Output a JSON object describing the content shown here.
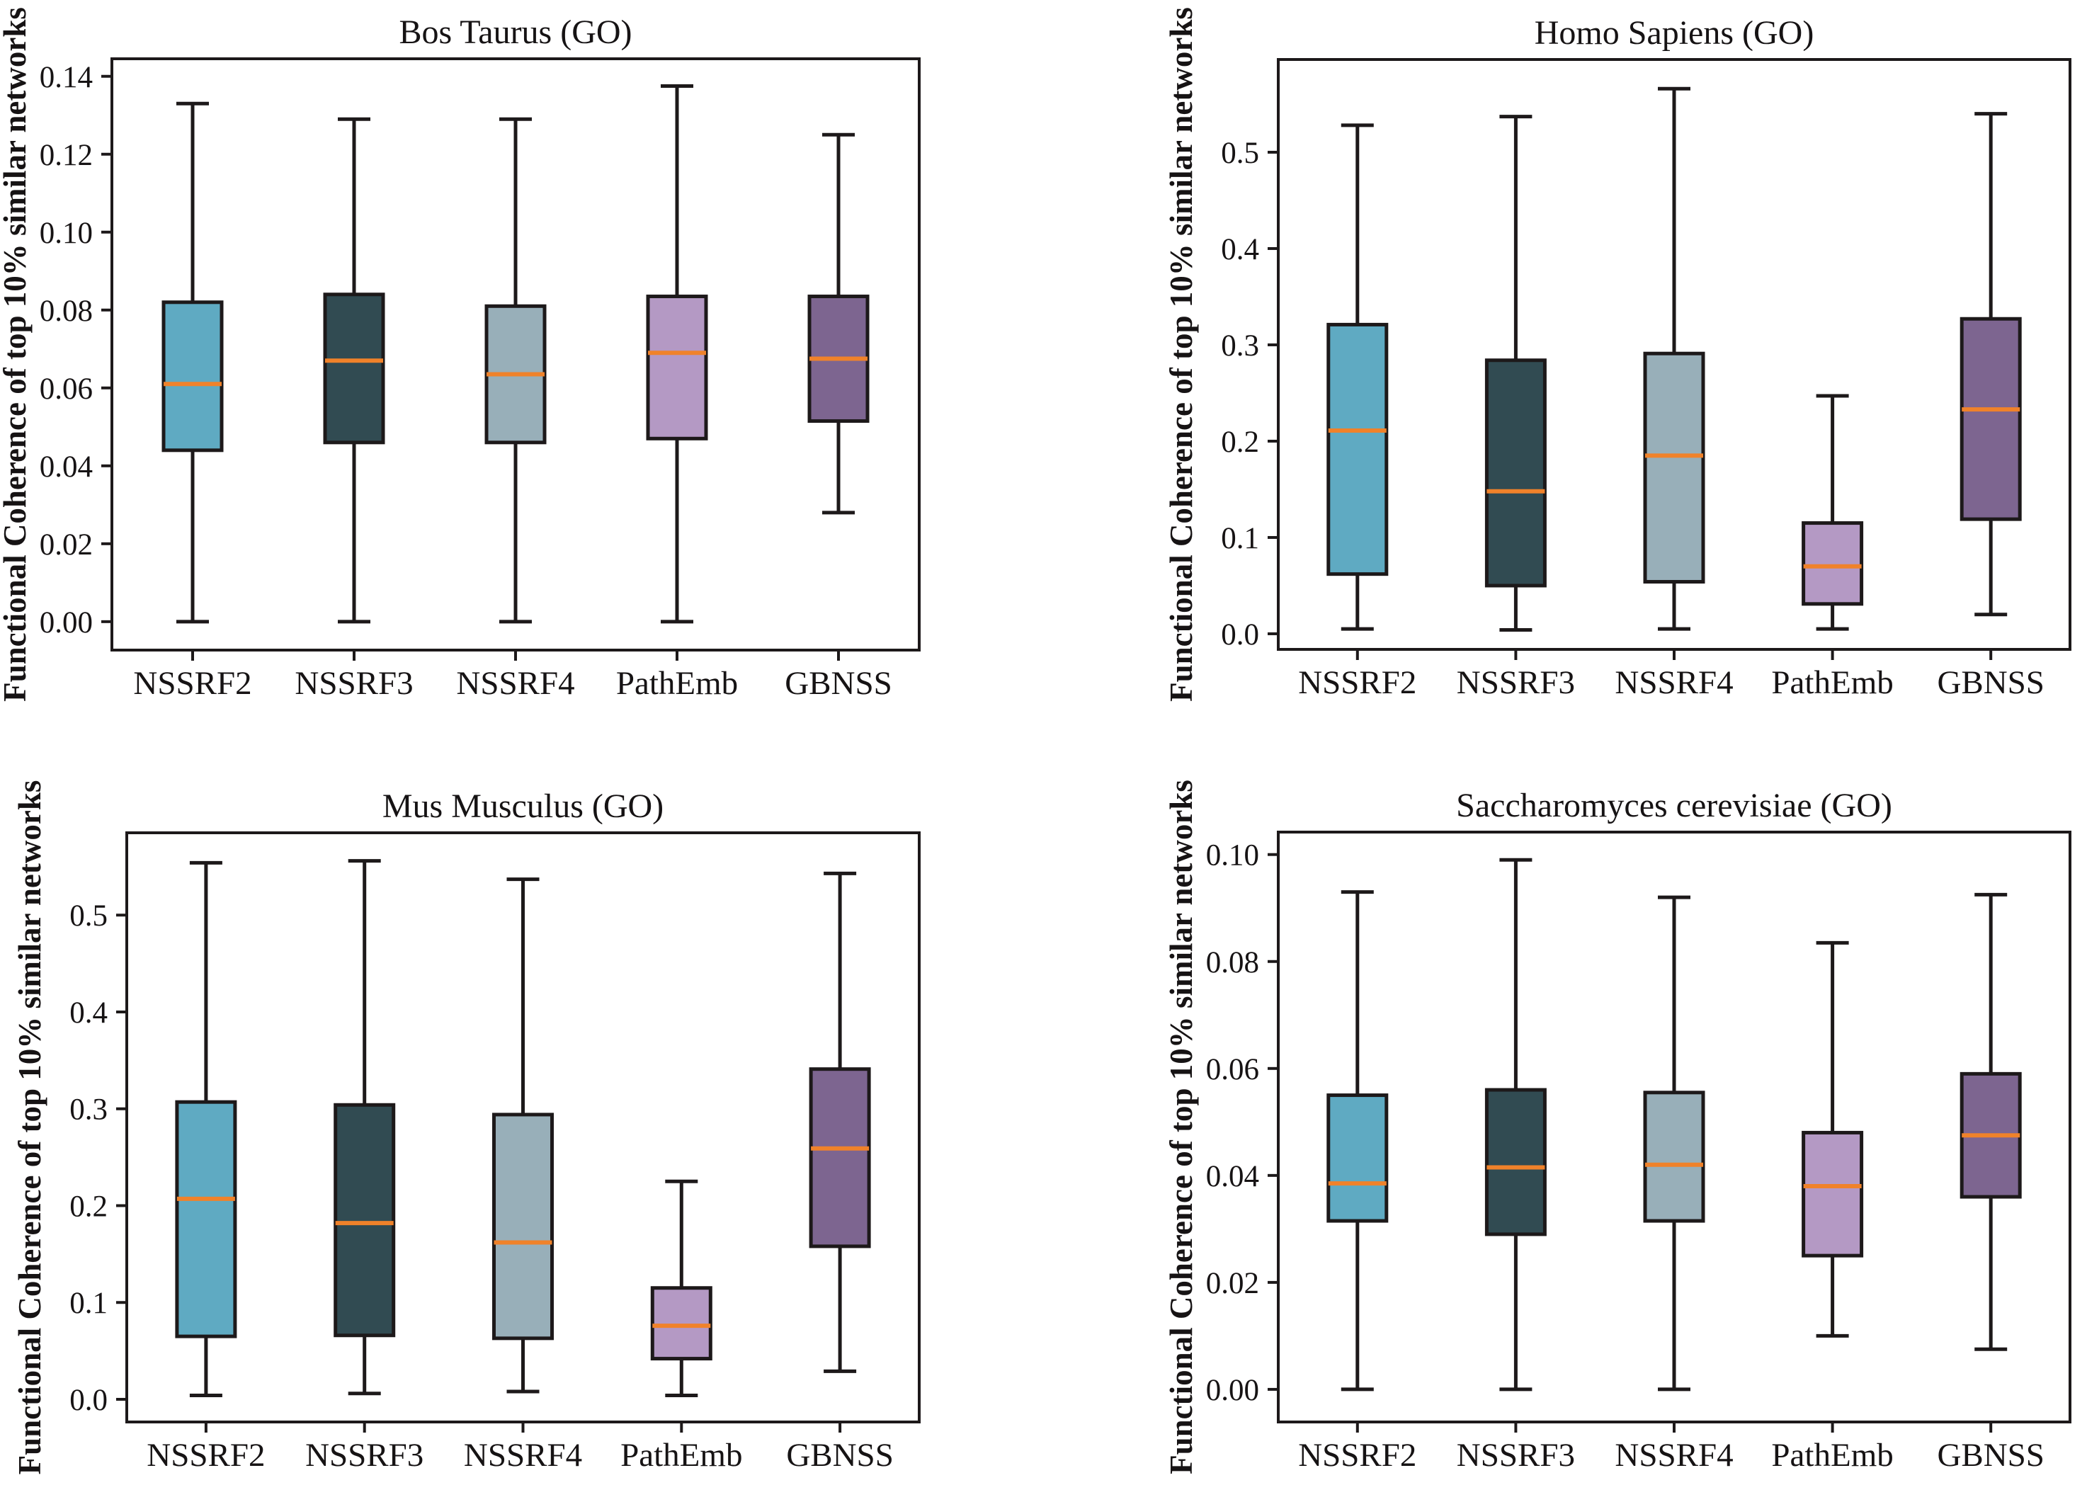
{
  "figure": {
    "background": "#ffffff",
    "axis_color": "#1d191a",
    "box_edge_color": "#1d191a",
    "median_color": "#f0822a",
    "ylabel": "Functional Coherence of top 10% similar networks",
    "categories": [
      "NSSRF2",
      "NSSRF3",
      "NSSRF4",
      "PathEmb",
      "GBNSS"
    ],
    "palette": {
      "NSSRF2": "#5faac2",
      "NSSRF3": "#314b52",
      "NSSRF4": "#98afb9",
      "PathEmb": "#b499c4",
      "GBNSS": "#7d6590"
    }
  },
  "chart_data": [
    {
      "type": "box",
      "title": "Bos Taurus (GO)",
      "xlabel": "",
      "ylabel": "Functional Coherence of top 10% similar networks",
      "grid": false,
      "legend": false,
      "categories": [
        "NSSRF2",
        "NSSRF3",
        "NSSRF4",
        "PathEmb",
        "GBNSS"
      ],
      "yticks": [
        "0.00",
        "0.02",
        "0.04",
        "0.06",
        "0.08",
        "0.10",
        "0.12",
        "0.14"
      ],
      "ylim": [
        -0.0073,
        0.1445
      ],
      "series": [
        {
          "name": "NSSRF2",
          "color": "#5faac2",
          "whislo": 0.0,
          "q1": 0.044,
          "med": 0.061,
          "q3": 0.082,
          "whishi": 0.133
        },
        {
          "name": "NSSRF3",
          "color": "#314b52",
          "whislo": 0.0,
          "q1": 0.046,
          "med": 0.067,
          "q3": 0.084,
          "whishi": 0.129
        },
        {
          "name": "NSSRF4",
          "color": "#98afb9",
          "whislo": 0.0,
          "q1": 0.046,
          "med": 0.0635,
          "q3": 0.081,
          "whishi": 0.129
        },
        {
          "name": "PathEmb",
          "color": "#b499c4",
          "whislo": 0.0,
          "q1": 0.047,
          "med": 0.069,
          "q3": 0.0835,
          "whishi": 0.1375
        },
        {
          "name": "GBNSS",
          "color": "#7d6590",
          "whislo": 0.028,
          "q1": 0.0515,
          "med": 0.0675,
          "q3": 0.0835,
          "whishi": 0.125
        }
      ]
    },
    {
      "type": "box",
      "title": "Homo Sapiens (GO)",
      "xlabel": "",
      "ylabel": "Functional Coherence of top 10% similar networks",
      "grid": false,
      "legend": false,
      "categories": [
        "NSSRF2",
        "NSSRF3",
        "NSSRF4",
        "PathEmb",
        "GBNSS"
      ],
      "yticks": [
        "0.0",
        "0.1",
        "0.2",
        "0.3",
        "0.4",
        "0.5"
      ],
      "ylim": [
        -0.0162,
        0.5963
      ],
      "series": [
        {
          "name": "NSSRF2",
          "color": "#5faac2",
          "whislo": 0.005,
          "q1": 0.062,
          "med": 0.211,
          "q3": 0.321,
          "whishi": 0.528
        },
        {
          "name": "NSSRF3",
          "color": "#314b52",
          "whislo": 0.004,
          "q1": 0.05,
          "med": 0.148,
          "q3": 0.284,
          "whishi": 0.537
        },
        {
          "name": "NSSRF4",
          "color": "#98afb9",
          "whislo": 0.005,
          "q1": 0.054,
          "med": 0.185,
          "q3": 0.291,
          "whishi": 0.566
        },
        {
          "name": "PathEmb",
          "color": "#b499c4",
          "whislo": 0.005,
          "q1": 0.031,
          "med": 0.07,
          "q3": 0.115,
          "whishi": 0.247
        },
        {
          "name": "GBNSS",
          "color": "#7d6590",
          "whislo": 0.02,
          "q1": 0.119,
          "med": 0.233,
          "q3": 0.327,
          "whishi": 0.54
        }
      ]
    },
    {
      "type": "box",
      "title": "Mus Musculus (GO)",
      "xlabel": "",
      "ylabel": "Functional Coherence of top 10% similar networks",
      "grid": false,
      "legend": false,
      "categories": [
        "NSSRF2",
        "NSSRF3",
        "NSSRF4",
        "PathEmb",
        "GBNSS"
      ],
      "yticks": [
        "0.0",
        "0.1",
        "0.2",
        "0.3",
        "0.4",
        "0.5"
      ],
      "ylim": [
        -0.0234,
        0.585
      ],
      "series": [
        {
          "name": "NSSRF2",
          "color": "#5faac2",
          "whislo": 0.004,
          "q1": 0.065,
          "med": 0.207,
          "q3": 0.307,
          "whishi": 0.554
        },
        {
          "name": "NSSRF3",
          "color": "#314b52",
          "whislo": 0.006,
          "q1": 0.066,
          "med": 0.182,
          "q3": 0.304,
          "whishi": 0.556
        },
        {
          "name": "NSSRF4",
          "color": "#98afb9",
          "whislo": 0.008,
          "q1": 0.063,
          "med": 0.162,
          "q3": 0.294,
          "whishi": 0.537
        },
        {
          "name": "PathEmb",
          "color": "#b499c4",
          "whislo": 0.004,
          "q1": 0.042,
          "med": 0.076,
          "q3": 0.115,
          "whishi": 0.225
        },
        {
          "name": "GBNSS",
          "color": "#7d6590",
          "whislo": 0.029,
          "q1": 0.158,
          "med": 0.259,
          "q3": 0.341,
          "whishi": 0.543
        }
      ]
    },
    {
      "type": "box",
      "title": "Saccharomyces cerevisiae (GO)",
      "xlabel": "",
      "ylabel": "Functional Coherence of top 10% similar networks",
      "grid": false,
      "legend": false,
      "categories": [
        "NSSRF2",
        "NSSRF3",
        "NSSRF4",
        "PathEmb",
        "GBNSS"
      ],
      "yticks": [
        "0.00",
        "0.02",
        "0.04",
        "0.06",
        "0.08",
        "0.10"
      ],
      "ylim": [
        -0.0061,
        0.1042
      ],
      "series": [
        {
          "name": "NSSRF2",
          "color": "#5faac2",
          "whislo": 0.0,
          "q1": 0.0315,
          "med": 0.0385,
          "q3": 0.055,
          "whishi": 0.093
        },
        {
          "name": "NSSRF3",
          "color": "#314b52",
          "whislo": 0.0,
          "q1": 0.029,
          "med": 0.0415,
          "q3": 0.056,
          "whishi": 0.099
        },
        {
          "name": "NSSRF4",
          "color": "#98afb9",
          "whislo": 0.0,
          "q1": 0.0315,
          "med": 0.042,
          "q3": 0.0555,
          "whishi": 0.092
        },
        {
          "name": "PathEmb",
          "color": "#b499c4",
          "whislo": 0.01,
          "q1": 0.025,
          "med": 0.038,
          "q3": 0.048,
          "whishi": 0.0835
        },
        {
          "name": "GBNSS",
          "color": "#7d6590",
          "whislo": 0.0075,
          "q1": 0.036,
          "med": 0.0475,
          "q3": 0.059,
          "whishi": 0.0925
        }
      ]
    }
  ]
}
